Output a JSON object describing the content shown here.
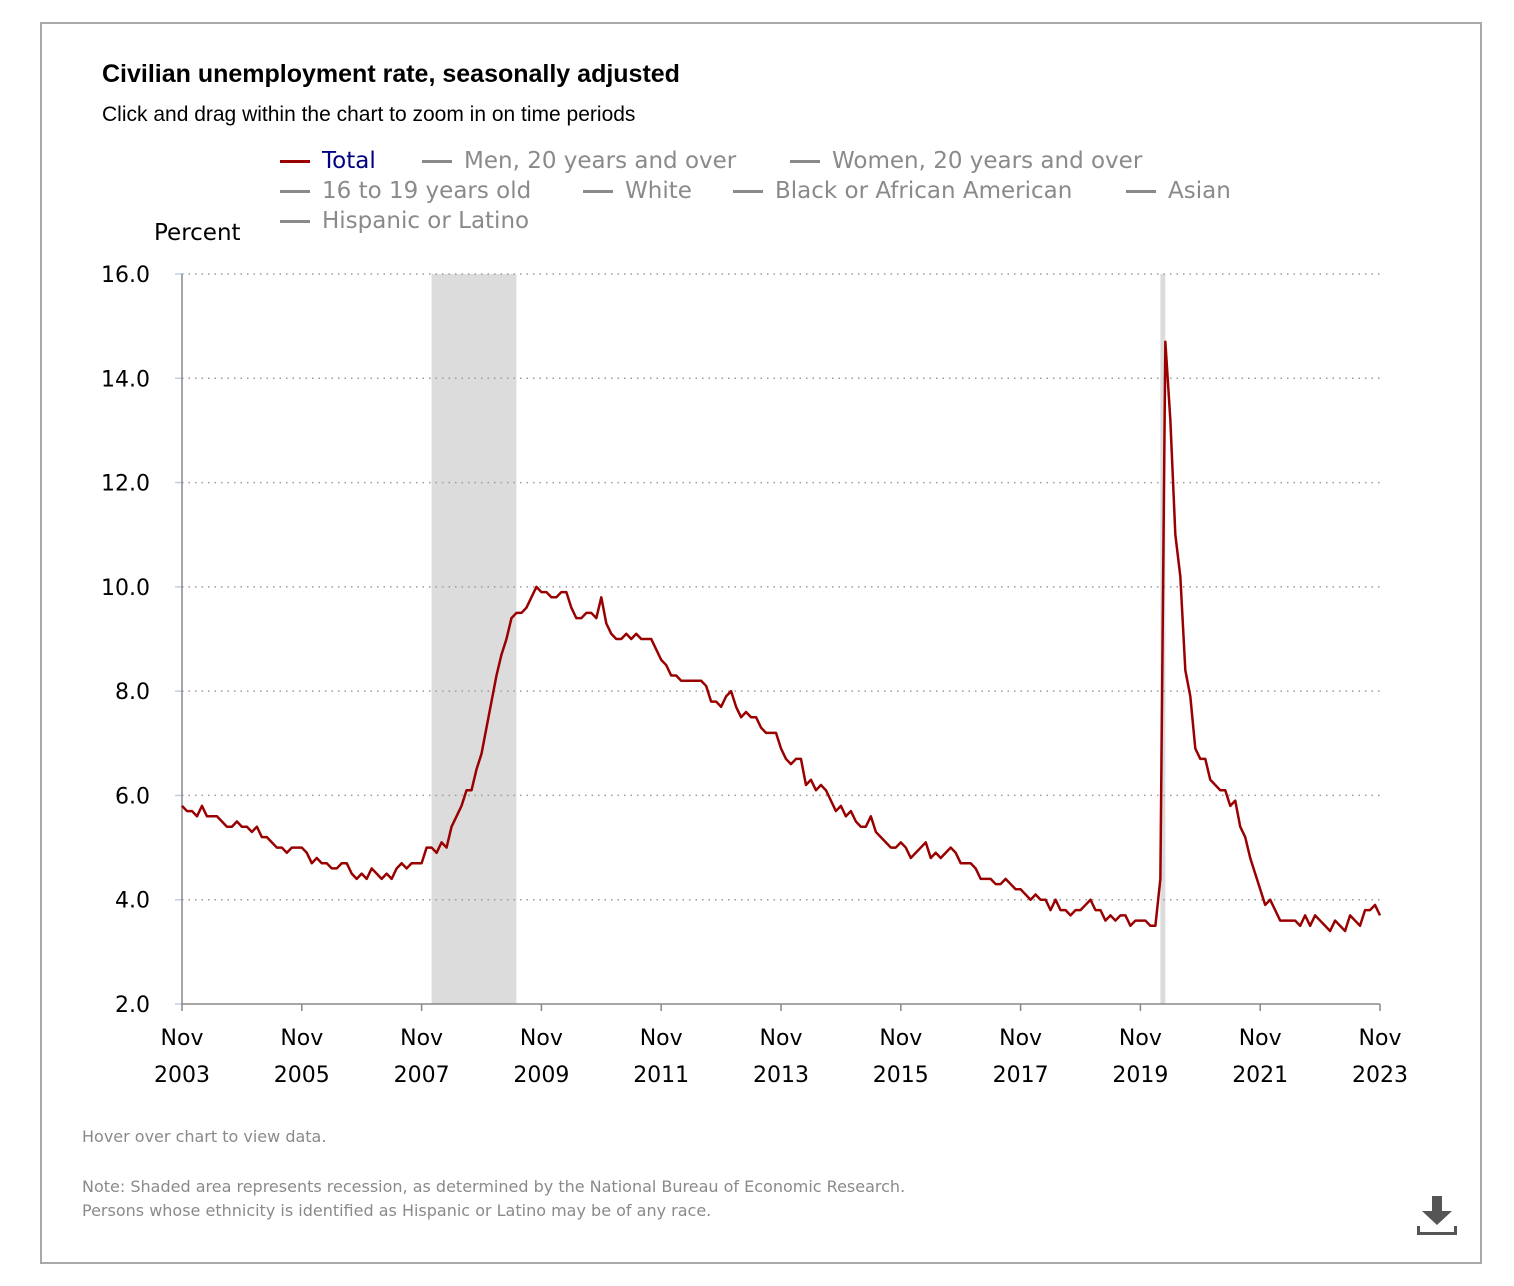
{
  "title": "Civilian unemployment rate, seasonally adjusted",
  "subtitle": "Click and drag within the chart to zoom in on time periods",
  "legend": [
    {
      "label": "Total",
      "active": true
    },
    {
      "label": "Men, 20 years and over",
      "active": false
    },
    {
      "label": "Women, 20 years and over",
      "active": false
    },
    {
      "label": "16 to 19 years old",
      "active": false
    },
    {
      "label": "White",
      "active": false
    },
    {
      "label": "Black or African American",
      "active": false
    },
    {
      "label": "Asian",
      "active": false
    },
    {
      "label": "Hispanic or Latino",
      "active": false
    }
  ],
  "hover_note": "Hover over chart to view data.",
  "note_lines": [
    "Note: Shaded area represents recession, as determined by the National Bureau of Economic Research.",
    "Persons whose ethnicity is identified as Hispanic or Latino may be of any race."
  ],
  "icons": {
    "download": "download-icon"
  },
  "chart_data": {
    "type": "line",
    "ylabel": "Percent",
    "ylim": [
      2.0,
      16.0
    ],
    "yticks": [
      "2.0",
      "4.0",
      "6.0",
      "8.0",
      "10.0",
      "12.0",
      "14.0",
      "16.0"
    ],
    "xlim": [
      "2003-11",
      "2023-11"
    ],
    "xticks": [
      {
        "date": "2003-11",
        "line1": "Nov",
        "line2": "2003"
      },
      {
        "date": "2005-11",
        "line1": "Nov",
        "line2": "2005"
      },
      {
        "date": "2007-11",
        "line1": "Nov",
        "line2": "2007"
      },
      {
        "date": "2009-11",
        "line1": "Nov",
        "line2": "2009"
      },
      {
        "date": "2011-11",
        "line1": "Nov",
        "line2": "2011"
      },
      {
        "date": "2013-11",
        "line1": "Nov",
        "line2": "2013"
      },
      {
        "date": "2015-11",
        "line1": "Nov",
        "line2": "2015"
      },
      {
        "date": "2017-11",
        "line1": "Nov",
        "line2": "2017"
      },
      {
        "date": "2019-11",
        "line1": "Nov",
        "line2": "2019"
      },
      {
        "date": "2021-11",
        "line1": "Nov",
        "line2": "2021"
      },
      {
        "date": "2023-11",
        "line1": "Nov",
        "line2": "2023"
      }
    ],
    "grid": true,
    "recessions": [
      {
        "start": "2008-01",
        "end": "2009-06"
      },
      {
        "start": "2020-03",
        "end": "2020-04"
      }
    ],
    "series": [
      {
        "name": "Total",
        "color": "#990000",
        "start": "2003-11",
        "frequency": "monthly",
        "values": [
          5.8,
          5.7,
          5.7,
          5.6,
          5.8,
          5.6,
          5.6,
          5.6,
          5.5,
          5.4,
          5.4,
          5.5,
          5.4,
          5.4,
          5.3,
          5.4,
          5.2,
          5.2,
          5.1,
          5.0,
          5.0,
          4.9,
          5.0,
          5.0,
          5.0,
          4.9,
          4.7,
          4.8,
          4.7,
          4.7,
          4.6,
          4.6,
          4.7,
          4.7,
          4.5,
          4.4,
          4.5,
          4.4,
          4.6,
          4.5,
          4.4,
          4.5,
          4.4,
          4.6,
          4.7,
          4.6,
          4.7,
          4.7,
          4.7,
          5.0,
          5.0,
          4.9,
          5.1,
          5.0,
          5.4,
          5.6,
          5.8,
          6.1,
          6.1,
          6.5,
          6.8,
          7.3,
          7.8,
          8.3,
          8.7,
          9.0,
          9.4,
          9.5,
          9.5,
          9.6,
          9.8,
          10.0,
          9.9,
          9.9,
          9.8,
          9.8,
          9.9,
          9.9,
          9.6,
          9.4,
          9.4,
          9.5,
          9.5,
          9.4,
          9.8,
          9.3,
          9.1,
          9.0,
          9.0,
          9.1,
          9.0,
          9.1,
          9.0,
          9.0,
          9.0,
          8.8,
          8.6,
          8.5,
          8.3,
          8.3,
          8.2,
          8.2,
          8.2,
          8.2,
          8.2,
          8.1,
          7.8,
          7.8,
          7.7,
          7.9,
          8.0,
          7.7,
          7.5,
          7.6,
          7.5,
          7.5,
          7.3,
          7.2,
          7.2,
          7.2,
          6.9,
          6.7,
          6.6,
          6.7,
          6.7,
          6.2,
          6.3,
          6.1,
          6.2,
          6.1,
          5.9,
          5.7,
          5.8,
          5.6,
          5.7,
          5.5,
          5.4,
          5.4,
          5.6,
          5.3,
          5.2,
          5.1,
          5.0,
          5.0,
          5.1,
          5.0,
          4.8,
          4.9,
          5.0,
          5.1,
          4.8,
          4.9,
          4.8,
          4.9,
          5.0,
          4.9,
          4.7,
          4.7,
          4.7,
          4.6,
          4.4,
          4.4,
          4.4,
          4.3,
          4.3,
          4.4,
          4.3,
          4.2,
          4.2,
          4.1,
          4.0,
          4.1,
          4.0,
          4.0,
          3.8,
          4.0,
          3.8,
          3.8,
          3.7,
          3.8,
          3.8,
          3.9,
          4.0,
          3.8,
          3.8,
          3.6,
          3.7,
          3.6,
          3.7,
          3.7,
          3.5,
          3.6,
          3.6,
          3.6,
          3.5,
          3.5,
          4.4,
          14.7,
          13.2,
          11.0,
          10.2,
          8.4,
          7.9,
          6.9,
          6.7,
          6.7,
          6.3,
          6.2,
          6.1,
          6.1,
          5.8,
          5.9,
          5.4,
          5.2,
          4.8,
          4.5,
          4.2,
          3.9,
          4.0,
          3.8,
          3.6,
          3.6,
          3.6,
          3.6,
          3.5,
          3.7,
          3.5,
          3.7,
          3.6,
          3.5,
          3.4,
          3.6,
          3.5,
          3.4,
          3.7,
          3.6,
          3.5,
          3.8,
          3.8,
          3.9,
          3.7
        ]
      }
    ]
  }
}
